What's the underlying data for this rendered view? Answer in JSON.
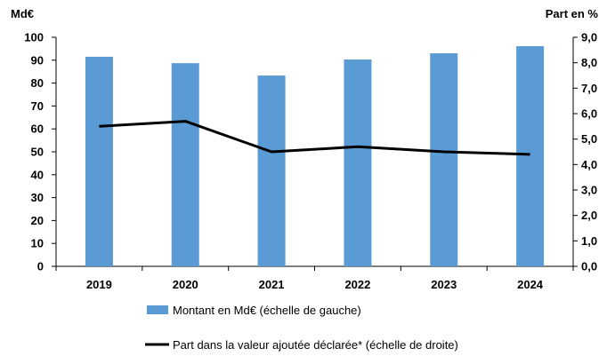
{
  "chart_data": {
    "type": "bar",
    "categories": [
      "2019",
      "2020",
      "2021",
      "2022",
      "2023",
      "2024"
    ],
    "series": [
      {
        "name": "Montant en Md€ (échelle de gauche)",
        "type": "bar",
        "axis": "left",
        "color": "#5b9bd5",
        "values": [
          91.5,
          88.7,
          83.3,
          90.3,
          93.0,
          96.1
        ]
      },
      {
        "name": "Part dans la valeur ajoutée déclarée* (échelle de droite)",
        "type": "line",
        "axis": "right",
        "color": "#000000",
        "values": [
          5.5,
          5.7,
          4.5,
          4.7,
          4.5,
          4.4
        ]
      }
    ],
    "y_left": {
      "unit": "Md€",
      "ylim": [
        0,
        100
      ],
      "ticks": [
        "0",
        "10",
        "20",
        "30",
        "40",
        "50",
        "60",
        "70",
        "80",
        "90",
        "100"
      ]
    },
    "y_right": {
      "unit": "Part en %",
      "ylim": [
        0,
        9
      ],
      "ticks": [
        "0,0",
        "1,0",
        "2,0",
        "3,0",
        "4,0",
        "5,0",
        "6,0",
        "7,0",
        "8,0",
        "9,0"
      ]
    },
    "grid": false,
    "legend_position": "bottom"
  }
}
